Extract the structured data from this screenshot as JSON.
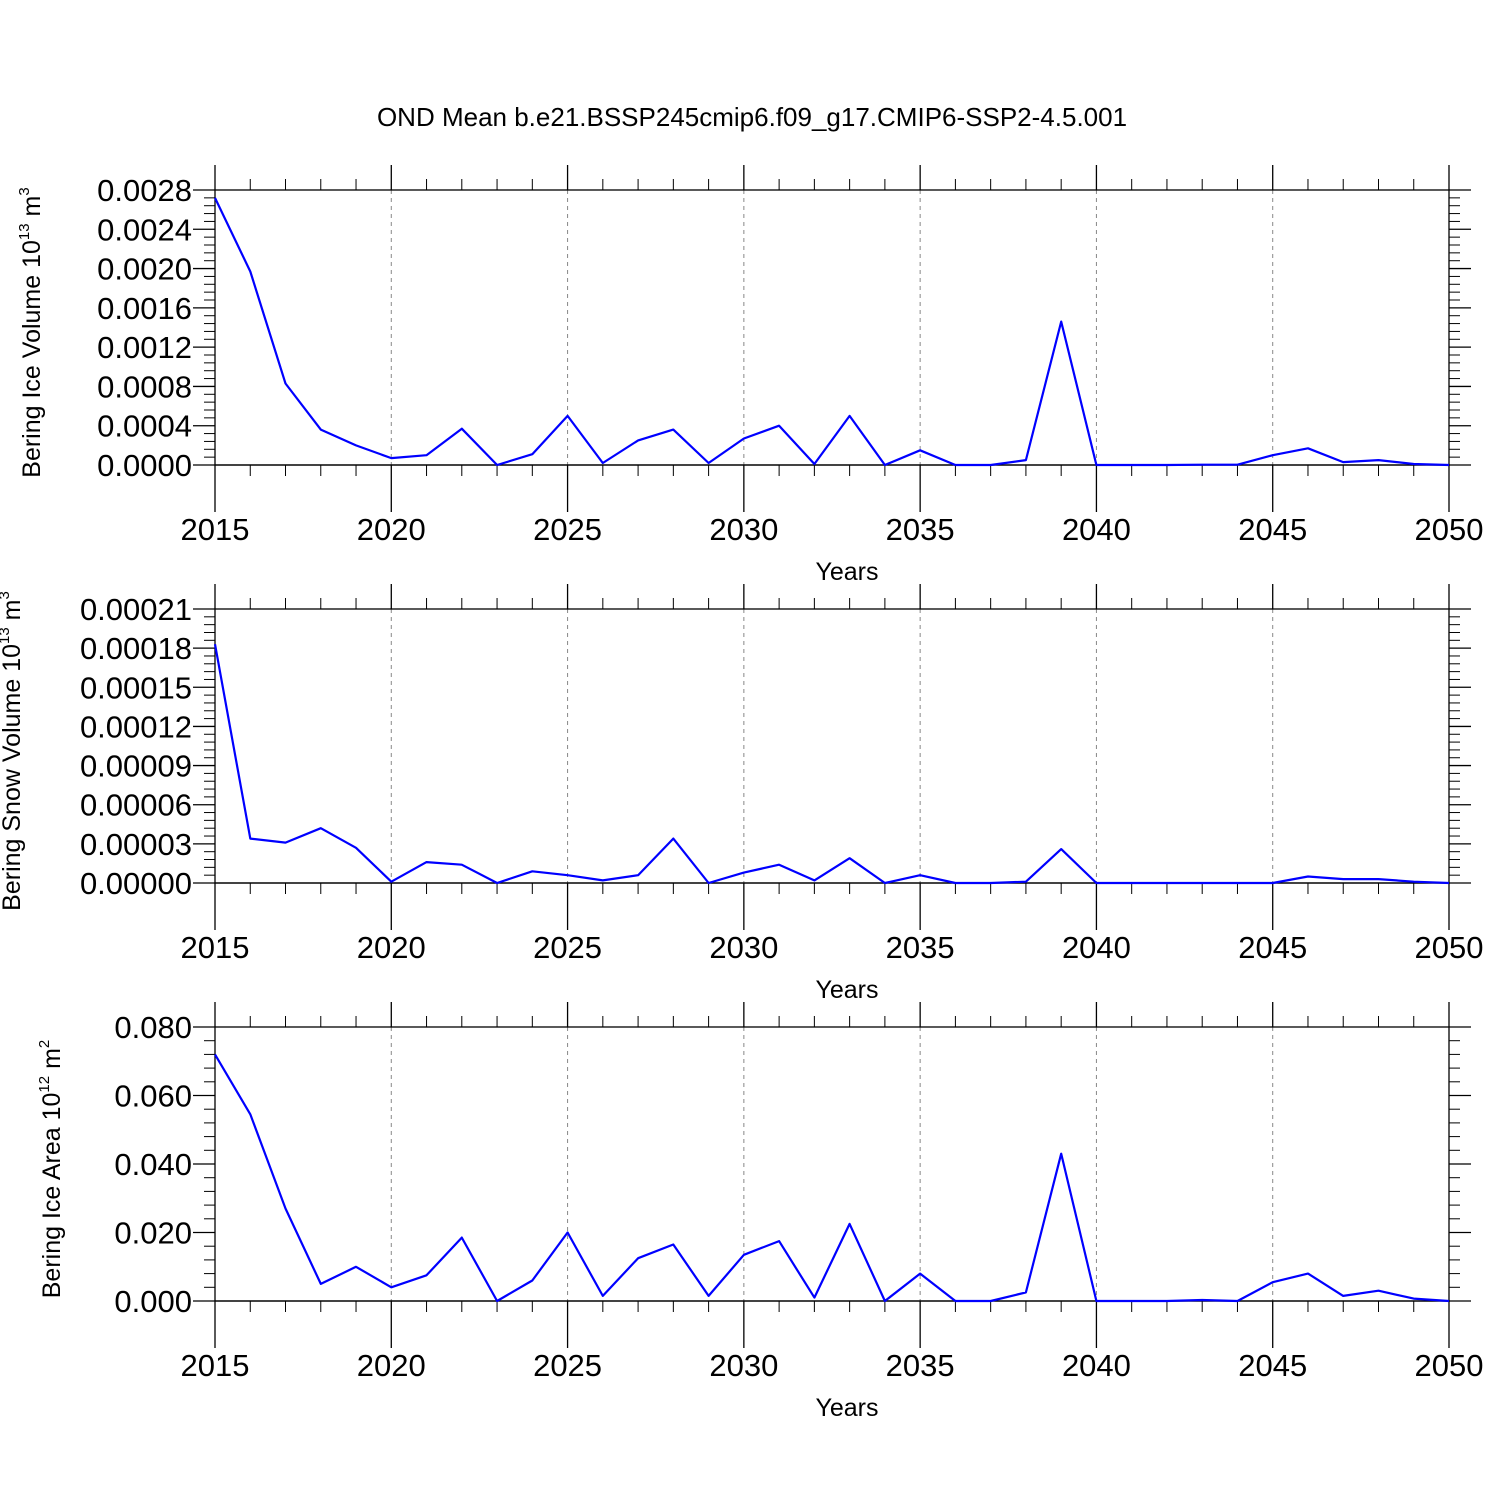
{
  "title": "OND Mean b.e21.BSSP245cmip6.f09_g17.CMIP6-SSP2-4.5.001",
  "colors": {
    "line": "#0000ff",
    "axis": "#000000",
    "grid": "#888888"
  },
  "chart_data": [
    {
      "type": "line",
      "ylabel": {
        "text": "Bering Ice Volume 10",
        "exp": "13",
        "unit": " m",
        "unit_exp": "3"
      },
      "xlabel": "Years",
      "xlim": [
        2015,
        2050
      ],
      "ylim": [
        0,
        0.0028
      ],
      "xticks": [
        "2015",
        "2020",
        "2025",
        "2030",
        "2035",
        "2040",
        "2045",
        "2050"
      ],
      "yticks": [
        "0.0000",
        "0.0004",
        "0.0008",
        "0.0012",
        "0.0016",
        "0.0020",
        "0.0024",
        "0.0028"
      ],
      "grid": "dashed vertical at major x ticks",
      "series": [
        {
          "x": [
            2015,
            2016,
            2017,
            2018,
            2019,
            2020,
            2021,
            2022,
            2023,
            2024,
            2025,
            2026,
            2027,
            2028,
            2029,
            2030,
            2031,
            2032,
            2033,
            2034,
            2035,
            2036,
            2037,
            2038,
            2039,
            2040,
            2041,
            2042,
            2043,
            2044,
            2045,
            2046,
            2047,
            2048,
            2049,
            2050
          ],
          "values": [
            0.00272,
            0.00197,
            0.00083,
            0.00036,
            0.0002,
            7e-05,
            0.0001,
            0.00037,
            0.0,
            0.00011,
            0.0005,
            2e-05,
            0.00025,
            0.00036,
            2e-05,
            0.00027,
            0.0004,
            1e-05,
            0.0005,
            0.0,
            0.00015,
            0.0,
            0.0,
            5e-05,
            0.00146,
            0.0,
            0.0,
            0.0,
            3e-06,
            3e-06,
            0.0001,
            0.00017,
            3e-05,
            5e-05,
            1e-05,
            0.0
          ]
        }
      ]
    },
    {
      "type": "line",
      "ylabel": {
        "text": "Bering Snow Volume 10",
        "exp": "13",
        "unit": " m",
        "unit_exp": "3"
      },
      "xlabel": "Years",
      "xlim": [
        2015,
        2050
      ],
      "ylim": [
        0,
        0.00021
      ],
      "xticks": [
        "2015",
        "2020",
        "2025",
        "2030",
        "2035",
        "2040",
        "2045",
        "2050"
      ],
      "yticks": [
        "0.00000",
        "0.00003",
        "0.00006",
        "0.00009",
        "0.00012",
        "0.00015",
        "0.00018",
        "0.00021"
      ],
      "grid": "dashed vertical at major x ticks",
      "series": [
        {
          "x": [
            2015,
            2016,
            2017,
            2018,
            2019,
            2020,
            2021,
            2022,
            2023,
            2024,
            2025,
            2026,
            2027,
            2028,
            2029,
            2030,
            2031,
            2032,
            2033,
            2034,
            2035,
            2036,
            2037,
            2038,
            2039,
            2040,
            2041,
            2042,
            2043,
            2044,
            2045,
            2046,
            2047,
            2048,
            2049,
            2050
          ],
          "values": [
            0.000183,
            3.4e-05,
            3.1e-05,
            4.2e-05,
            2.7e-05,
            1e-06,
            1.6e-05,
            1.4e-05,
            0.0,
            9e-06,
            6e-06,
            2e-06,
            6e-06,
            3.4e-05,
            0.0,
            8e-06,
            1.4e-05,
            2e-06,
            1.9e-05,
            0.0,
            6e-06,
            0.0,
            0.0,
            1e-06,
            2.6e-05,
            0.0,
            0.0,
            0.0,
            0.0,
            0.0,
            0.0,
            5e-06,
            3e-06,
            3e-06,
            1e-06,
            0.0
          ]
        }
      ]
    },
    {
      "type": "line",
      "ylabel": {
        "text": "Bering Ice Area 10",
        "exp": "12",
        "unit": " m",
        "unit_exp": "2"
      },
      "xlabel": "Years",
      "xlim": [
        2015,
        2050
      ],
      "ylim": [
        0,
        0.08
      ],
      "xticks": [
        "2015",
        "2020",
        "2025",
        "2030",
        "2035",
        "2040",
        "2045",
        "2050"
      ],
      "yticks": [
        "0.000",
        "0.020",
        "0.040",
        "0.060",
        "0.080"
      ],
      "grid": "dashed vertical at major x ticks",
      "series": [
        {
          "x": [
            2015,
            2016,
            2017,
            2018,
            2019,
            2020,
            2021,
            2022,
            2023,
            2024,
            2025,
            2026,
            2027,
            2028,
            2029,
            2030,
            2031,
            2032,
            2033,
            2034,
            2035,
            2036,
            2037,
            2038,
            2039,
            2040,
            2041,
            2042,
            2043,
            2044,
            2045,
            2046,
            2047,
            2048,
            2049,
            2050
          ],
          "values": [
            0.072,
            0.0545,
            0.027,
            0.005,
            0.01,
            0.004,
            0.0075,
            0.0185,
            0.0,
            0.006,
            0.02,
            0.0015,
            0.0125,
            0.0165,
            0.0015,
            0.0135,
            0.0175,
            0.001,
            0.0225,
            0.0,
            0.008,
            0.0,
            0.0,
            0.0025,
            0.043,
            0.0,
            0.0,
            0.0,
            0.0003,
            0.0,
            0.0055,
            0.008,
            0.0015,
            0.003,
            0.0007,
            0.0
          ]
        }
      ]
    }
  ]
}
